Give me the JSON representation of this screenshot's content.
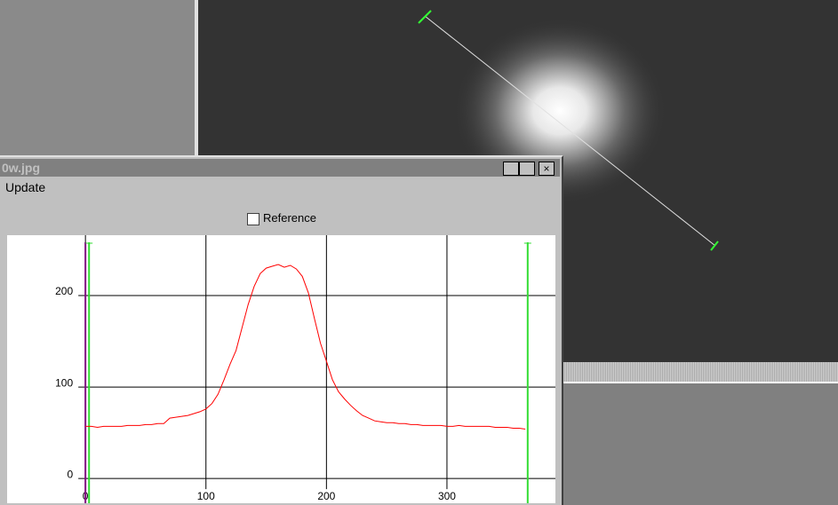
{
  "window": {
    "title": "0w.jpg",
    "menu": [
      "Update"
    ],
    "checkbox": "Reference"
  },
  "chart_data": {
    "type": "line",
    "x": [
      0,
      5,
      10,
      15,
      20,
      25,
      30,
      35,
      40,
      45,
      50,
      55,
      60,
      65,
      70,
      75,
      80,
      85,
      90,
      95,
      100,
      105,
      110,
      115,
      120,
      125,
      130,
      135,
      140,
      145,
      150,
      155,
      160,
      165,
      170,
      175,
      180,
      185,
      190,
      195,
      200,
      205,
      210,
      215,
      220,
      225,
      230,
      235,
      240,
      245,
      250,
      255,
      260,
      265,
      270,
      275,
      280,
      285,
      290,
      295,
      300,
      305,
      310,
      315,
      320,
      325,
      330,
      335,
      340,
      345,
      350,
      355,
      360,
      365
    ],
    "series": [
      {
        "color": "#ff0000",
        "values": [
          57,
          57,
          56,
          57,
          57,
          57,
          57,
          58,
          58,
          58,
          59,
          59,
          60,
          60,
          66,
          67,
          68,
          69,
          71,
          73,
          76,
          82,
          92,
          108,
          125,
          140,
          165,
          190,
          210,
          224,
          230,
          232,
          234,
          231,
          233,
          229,
          221,
          203,
          175,
          148,
          128,
          108,
          95,
          87,
          80,
          74,
          69,
          66,
          63,
          62,
          61,
          61,
          60,
          60,
          59,
          59,
          58,
          58,
          58,
          58,
          57,
          57,
          58,
          57,
          57,
          57,
          57,
          57,
          56,
          56,
          56,
          55,
          55,
          54
        ]
      }
    ],
    "xlim": [
      -65,
      390
    ],
    "ylim": [
      -27,
      266
    ],
    "xticks": [
      0,
      100,
      200,
      300
    ],
    "yticks": [
      0,
      100,
      200
    ],
    "grid": true
  }
}
